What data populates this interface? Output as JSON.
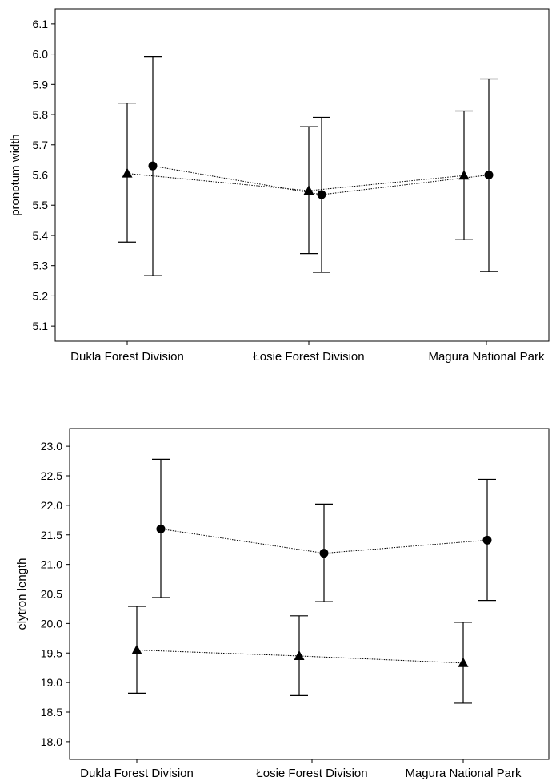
{
  "chart_data": [
    {
      "type": "line",
      "ylabel": "pronotum width",
      "xlabel": "",
      "categories": [
        "Dukla Forest Division",
        "Łosie Forest Division",
        "Magura National Park"
      ],
      "ylim": [
        5.05,
        6.15
      ],
      "yticks": [
        "5.1",
        "5.2",
        "5.3",
        "5.4",
        "5.5",
        "5.6",
        "5.7",
        "5.8",
        "5.9",
        "6.0",
        "6.1"
      ],
      "grid": false,
      "series": [
        {
          "marker": "triangle",
          "values": [
            5.605,
            5.548,
            5.598
          ],
          "lower": [
            5.378,
            5.34,
            5.386
          ],
          "upper": [
            5.838,
            5.76,
            5.812
          ]
        },
        {
          "marker": "circle",
          "values": [
            5.63,
            5.535,
            5.6
          ],
          "lower": [
            5.267,
            5.278,
            5.281
          ],
          "upper": [
            5.992,
            5.791,
            5.918
          ]
        }
      ]
    },
    {
      "type": "line",
      "ylabel": "elytron length",
      "xlabel": "",
      "categories": [
        "Dukla Forest Division",
        "Łosie Forest Division",
        "Magura National Park"
      ],
      "ylim": [
        17.7,
        23.3
      ],
      "yticks": [
        "18.0",
        "18.5",
        "19.0",
        "19.5",
        "20.0",
        "20.5",
        "21.0",
        "21.5",
        "22.0",
        "22.5",
        "23.0"
      ],
      "grid": false,
      "series": [
        {
          "marker": "triangle",
          "values": [
            19.55,
            19.45,
            19.33
          ],
          "lower": [
            18.82,
            18.78,
            18.65
          ],
          "upper": [
            20.29,
            20.13,
            20.02
          ]
        },
        {
          "marker": "circle",
          "values": [
            21.6,
            21.19,
            21.41
          ],
          "lower": [
            20.44,
            20.37,
            20.39
          ],
          "upper": [
            22.78,
            22.02,
            22.44
          ]
        }
      ]
    }
  ]
}
